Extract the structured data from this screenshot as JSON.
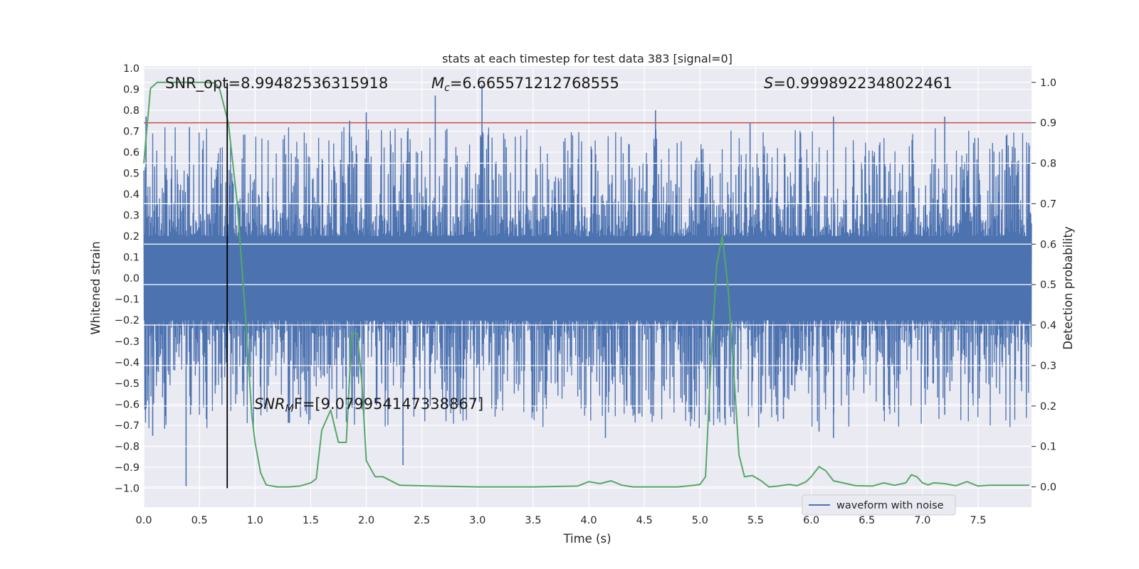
{
  "chart_data": {
    "type": "line",
    "title": "stats at each timestep for test data 383 [signal=0]",
    "xlabel": "Time (s)",
    "ylabel_left": "Whitened strain",
    "ylabel_right": "Detection probability",
    "xlim": [
      0.0,
      7.98
    ],
    "ylim_left": [
      -1.09,
      1.01
    ],
    "ylim_right": [
      -0.05,
      1.04
    ],
    "grid": true,
    "xticks": [
      "0.0",
      "0.5",
      "1.0",
      "1.5",
      "2.0",
      "2.5",
      "3.0",
      "3.5",
      "4.0",
      "4.5",
      "5.0",
      "5.5",
      "6.0",
      "6.5",
      "7.0",
      "7.5"
    ],
    "yticks_left": [
      "1.0",
      "0.9",
      "0.8",
      "0.7",
      "0.6",
      "0.5",
      "0.4",
      "0.3",
      "0.2",
      "0.1",
      "0.0",
      "−0.1",
      "−0.2",
      "−0.3",
      "−0.4",
      "−0.5",
      "−0.6",
      "−0.7",
      "−0.8",
      "−0.9",
      "−1.0"
    ],
    "yticks_right": [
      "1.0",
      "0.9",
      "0.8",
      "0.7",
      "0.6",
      "0.5",
      "0.4",
      "0.3",
      "0.2",
      "0.1",
      "0.0"
    ],
    "legend": {
      "entries": [
        "waveform with noise"
      ],
      "placement": "lower-right"
    },
    "annotations": {
      "snr_opt": "SNR_opt=8.99482536315918",
      "mc_symbol": "M",
      "mc_sub": "c",
      "mc_value": "=6.665571212768555",
      "s_symbol": "S",
      "s_value": "=0.9998922348022461",
      "snrmf_symbol": "SNR",
      "snrmf_sub": "M",
      "snrmf_value": "F=[9.079954147338867]"
    },
    "series": [
      {
        "name": "waveform with noise",
        "axis": "left",
        "color": "#4c72b0",
        "kind": "noise",
        "typical_envelope": [
          -0.42,
          0.42
        ],
        "spikes": [
          {
            "t": 0.02,
            "v": 0.77
          },
          {
            "t": 0.02,
            "v": -0.62
          },
          {
            "t": 0.08,
            "v": -0.75
          },
          {
            "t": 0.38,
            "v": -0.99
          },
          {
            "t": 0.42,
            "v": -0.65
          },
          {
            "t": 0.41,
            "v": 0.72
          },
          {
            "t": 1.85,
            "v": 0.75
          },
          {
            "t": 2.0,
            "v": 0.79
          },
          {
            "t": 2.33,
            "v": -0.89
          },
          {
            "t": 2.62,
            "v": 0.87
          },
          {
            "t": 3.04,
            "v": 0.92
          },
          {
            "t": 4.15,
            "v": -0.76
          },
          {
            "t": 4.6,
            "v": 0.8
          },
          {
            "t": 5.45,
            "v": 0.74
          },
          {
            "t": 5.75,
            "v": -0.67
          },
          {
            "t": 6.07,
            "v": -0.73
          },
          {
            "t": 6.2,
            "v": 0.77
          },
          {
            "t": 6.2,
            "v": -0.76
          },
          {
            "t": 7.2,
            "v": 0.77
          },
          {
            "t": 7.2,
            "v": -0.65
          },
          {
            "t": 7.96,
            "v": 0.63
          }
        ]
      },
      {
        "name": "detection probability",
        "axis": "right",
        "color": "#55a868",
        "x": [
          0.0,
          0.06,
          0.12,
          0.25,
          0.4,
          0.55,
          0.64,
          0.68,
          0.76,
          0.84,
          0.92,
          0.97,
          1.0,
          1.05,
          1.1,
          1.2,
          1.3,
          1.4,
          1.5,
          1.55,
          1.6,
          1.68,
          1.75,
          1.82,
          1.87,
          1.92,
          1.96,
          2.0,
          2.08,
          2.15,
          2.3,
          2.6,
          3.0,
          3.5,
          3.9,
          4.0,
          4.1,
          4.2,
          4.3,
          4.4,
          4.6,
          4.8,
          4.95,
          5.0,
          5.05,
          5.1,
          5.15,
          5.2,
          5.25,
          5.3,
          5.35,
          5.4,
          5.47,
          5.55,
          5.62,
          5.7,
          5.8,
          5.87,
          5.95,
          6.0,
          6.07,
          6.13,
          6.2,
          6.4,
          6.55,
          6.65,
          6.75,
          6.85,
          6.9,
          6.95,
          7.0,
          7.05,
          7.1,
          7.2,
          7.3,
          7.4,
          7.5,
          7.6,
          7.96
        ],
        "values": [
          0.8,
          0.985,
          1.0,
          1.0,
          1.0,
          1.0,
          0.998,
          0.985,
          0.9,
          0.7,
          0.4,
          0.18,
          0.11,
          0.035,
          0.005,
          0.0,
          0.0,
          0.002,
          0.01,
          0.02,
          0.14,
          0.19,
          0.11,
          0.11,
          0.38,
          0.38,
          0.26,
          0.065,
          0.025,
          0.025,
          0.004,
          0.002,
          0.0,
          0.0,
          0.002,
          0.013,
          0.008,
          0.015,
          0.004,
          0.0,
          0.0,
          0.0,
          0.004,
          0.006,
          0.025,
          0.32,
          0.55,
          0.62,
          0.5,
          0.3,
          0.08,
          0.025,
          0.028,
          0.015,
          0.0,
          0.002,
          0.006,
          0.003,
          0.012,
          0.025,
          0.05,
          0.04,
          0.015,
          0.003,
          0.002,
          0.01,
          0.004,
          0.01,
          0.03,
          0.025,
          0.01,
          0.005,
          0.01,
          0.008,
          0.003,
          0.013,
          0.002,
          0.004,
          0.004
        ]
      },
      {
        "name": "threshold",
        "axis": "right",
        "color": "#c44e52",
        "y": 0.9
      },
      {
        "name": "detection time",
        "axis": "left",
        "color": "#000000",
        "x": 0.75,
        "y_range": [
          -1.0,
          0.93
        ]
      }
    ]
  }
}
